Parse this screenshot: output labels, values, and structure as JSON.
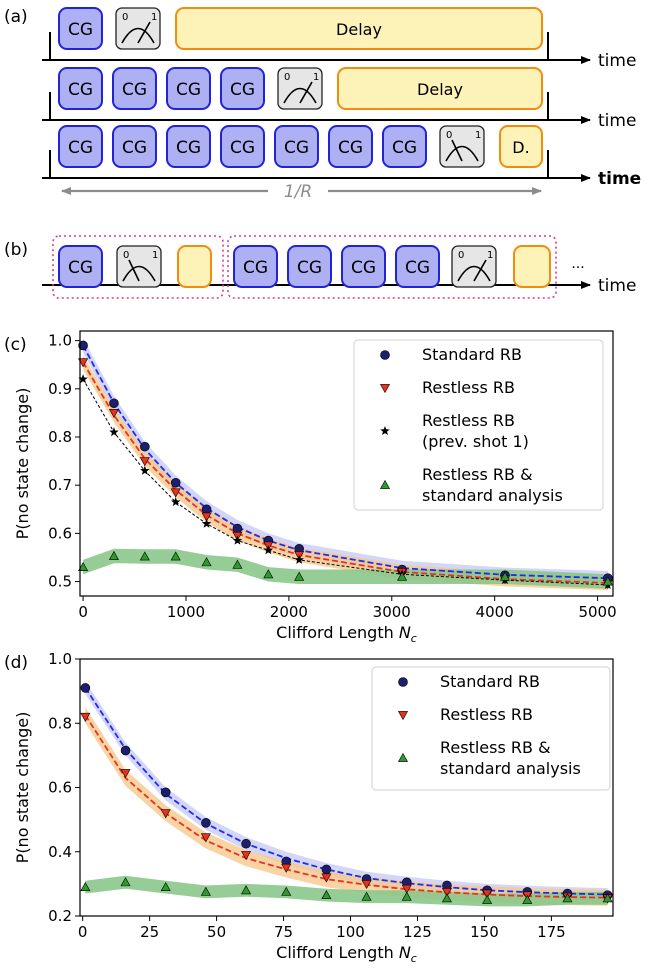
{
  "panel_a": {
    "label": "(a)",
    "cg_label": "CG",
    "delay_label": "Delay",
    "delay_short": "D.",
    "time_label": "time",
    "rate_label": "1/R",
    "meter_zero": "0",
    "meter_one": "1",
    "rows": [
      {
        "cg_count": 1,
        "delay": "Delay",
        "time_bold": false
      },
      {
        "cg_count": 4,
        "delay": "Delay",
        "time_bold": false
      },
      {
        "cg_count": 7,
        "delay": "D.",
        "time_bold": true
      }
    ]
  },
  "panel_b": {
    "label": "(b)",
    "cg_label": "CG",
    "time_label": "time",
    "ellipsis": "···",
    "group1_cg": 1,
    "group2_cg": 4
  },
  "colors": {
    "cg_fill": "#aeb0f4",
    "cg_stroke": "#2323d6",
    "delay_fill": "#fdf2b8",
    "delay_stroke": "#f28c0f",
    "meter_fill": "#e6e6e6",
    "group_stroke": "#d63a8e",
    "standard": "#1b1f6e",
    "standard_fit": "#1f2bf2",
    "standard_band": "#c8ccf6",
    "restless": "#e8321e",
    "restless_fit": "#e8321e",
    "restless_band": "#f6c88c",
    "prev_shot": "#000000",
    "analysis": "#2e9a2e",
    "analysis_band": "#8bc78b"
  },
  "chart_data": [
    {
      "panel": "(c)",
      "type": "scatter",
      "xlabel": "Clifford Length N_c",
      "xlabel_main": "Clifford Length ",
      "xlabel_var": "N",
      "xlabel_sub": "c",
      "ylabel": "P(no state change)",
      "xlim": [
        -30,
        5150
      ],
      "ylim": [
        0.47,
        1.02
      ],
      "xticks": [
        0,
        1000,
        2000,
        3000,
        4000,
        5000
      ],
      "yticks": [
        0.5,
        0.6,
        0.7,
        0.8,
        0.9,
        1.0
      ],
      "ytick_labels": [
        "0.5",
        "0.6",
        "0.7",
        "0.8",
        "0.9",
        "1.0"
      ],
      "legend_position": "upper-right",
      "series": [
        {
          "name": "Standard RB",
          "marker": "circle",
          "x": [
            0,
            300,
            600,
            900,
            1200,
            1500,
            1800,
            2100,
            3100,
            4100,
            5100
          ],
          "y": [
            0.99,
            0.87,
            0.78,
            0.705,
            0.65,
            0.61,
            0.585,
            0.568,
            0.525,
            0.513,
            0.507
          ],
          "fit": [
            0.99,
            0.87,
            0.775,
            0.705,
            0.652,
            0.613,
            0.585,
            0.565,
            0.528,
            0.514,
            0.507
          ],
          "band": 0.015
        },
        {
          "name": "Restless RB",
          "marker": "triangle-down",
          "x": [
            0,
            300,
            600,
            900,
            1200,
            1500,
            1800,
            2100,
            3100,
            4100,
            5100
          ],
          "y": [
            0.955,
            0.85,
            0.75,
            0.685,
            0.635,
            0.595,
            0.575,
            0.555,
            0.52,
            0.505,
            0.495
          ],
          "fit": [
            0.955,
            0.845,
            0.755,
            0.69,
            0.638,
            0.6,
            0.575,
            0.555,
            0.52,
            0.505,
            0.497
          ],
          "band": 0.015
        },
        {
          "name": "Restless RB\n(prev. shot 1)",
          "name_lines": [
            "Restless RB",
            "(prev. shot 1)"
          ],
          "marker": "star",
          "x": [
            0,
            300,
            600,
            900,
            1200,
            1500,
            1800,
            2100,
            3100,
            4100,
            5100
          ],
          "y": [
            0.92,
            0.81,
            0.73,
            0.665,
            0.62,
            0.585,
            0.565,
            0.545,
            0.515,
            0.503,
            0.493
          ]
        },
        {
          "name": "Restless RB &\nstandard analysis",
          "name_lines": [
            "Restless RB &",
            "standard analysis"
          ],
          "marker": "triangle-up",
          "x": [
            0,
            300,
            600,
            900,
            1200,
            1500,
            1800,
            2100,
            3100,
            4100,
            5100
          ],
          "y": [
            0.53,
            0.553,
            0.552,
            0.552,
            0.54,
            0.535,
            0.515,
            0.51,
            0.51,
            0.51,
            0.5
          ],
          "band": 0.015
        }
      ]
    },
    {
      "panel": "(d)",
      "type": "scatter",
      "xlabel": "Clifford Length N_c",
      "xlabel_main": "Clifford Length ",
      "xlabel_var": "N",
      "xlabel_sub": "c",
      "ylabel": "P(no state change)",
      "xlim": [
        -1,
        198
      ],
      "ylim": [
        0.2,
        1.0
      ],
      "xticks": [
        0,
        25,
        50,
        75,
        100,
        125,
        150,
        175
      ],
      "yticks": [
        0.2,
        0.4,
        0.6,
        0.8,
        1.0
      ],
      "ytick_labels": [
        "0.2",
        "0.4",
        "0.6",
        "0.8",
        "1.0"
      ],
      "legend_position": "upper-right",
      "series": [
        {
          "name": "Standard RB",
          "marker": "circle",
          "x": [
            1,
            16,
            31,
            46,
            61,
            76,
            91,
            106,
            121,
            136,
            151,
            166,
            181,
            196
          ],
          "y": [
            0.91,
            0.715,
            0.585,
            0.49,
            0.425,
            0.37,
            0.345,
            0.315,
            0.305,
            0.295,
            0.28,
            0.275,
            0.27,
            0.265
          ],
          "fit": [
            0.91,
            0.72,
            0.58,
            0.488,
            0.425,
            0.38,
            0.345,
            0.318,
            0.302,
            0.29,
            0.28,
            0.274,
            0.27,
            0.267
          ],
          "band": 0.02
        },
        {
          "name": "Restless RB",
          "marker": "triangle-down",
          "x": [
            1,
            16,
            31,
            46,
            61,
            76,
            91,
            106,
            121,
            136,
            151,
            166,
            181,
            196
          ],
          "y": [
            0.82,
            0.645,
            0.52,
            0.445,
            0.39,
            0.35,
            0.32,
            0.3,
            0.285,
            0.275,
            0.27,
            0.265,
            0.26,
            0.255
          ],
          "fit": [
            0.825,
            0.63,
            0.52,
            0.435,
            0.38,
            0.345,
            0.315,
            0.297,
            0.283,
            0.274,
            0.267,
            0.262,
            0.259,
            0.257
          ],
          "band": 0.025
        },
        {
          "name": "Restless RB &\nstandard analysis",
          "name_lines": [
            "Restless RB &",
            "standard analysis"
          ],
          "marker": "triangle-up",
          "x": [
            1,
            16,
            31,
            46,
            61,
            76,
            91,
            106,
            121,
            136,
            151,
            166,
            181,
            196
          ],
          "y": [
            0.29,
            0.305,
            0.29,
            0.275,
            0.28,
            0.275,
            0.265,
            0.26,
            0.26,
            0.255,
            0.25,
            0.25,
            0.255,
            0.255
          ],
          "band": 0.02
        }
      ]
    }
  ]
}
